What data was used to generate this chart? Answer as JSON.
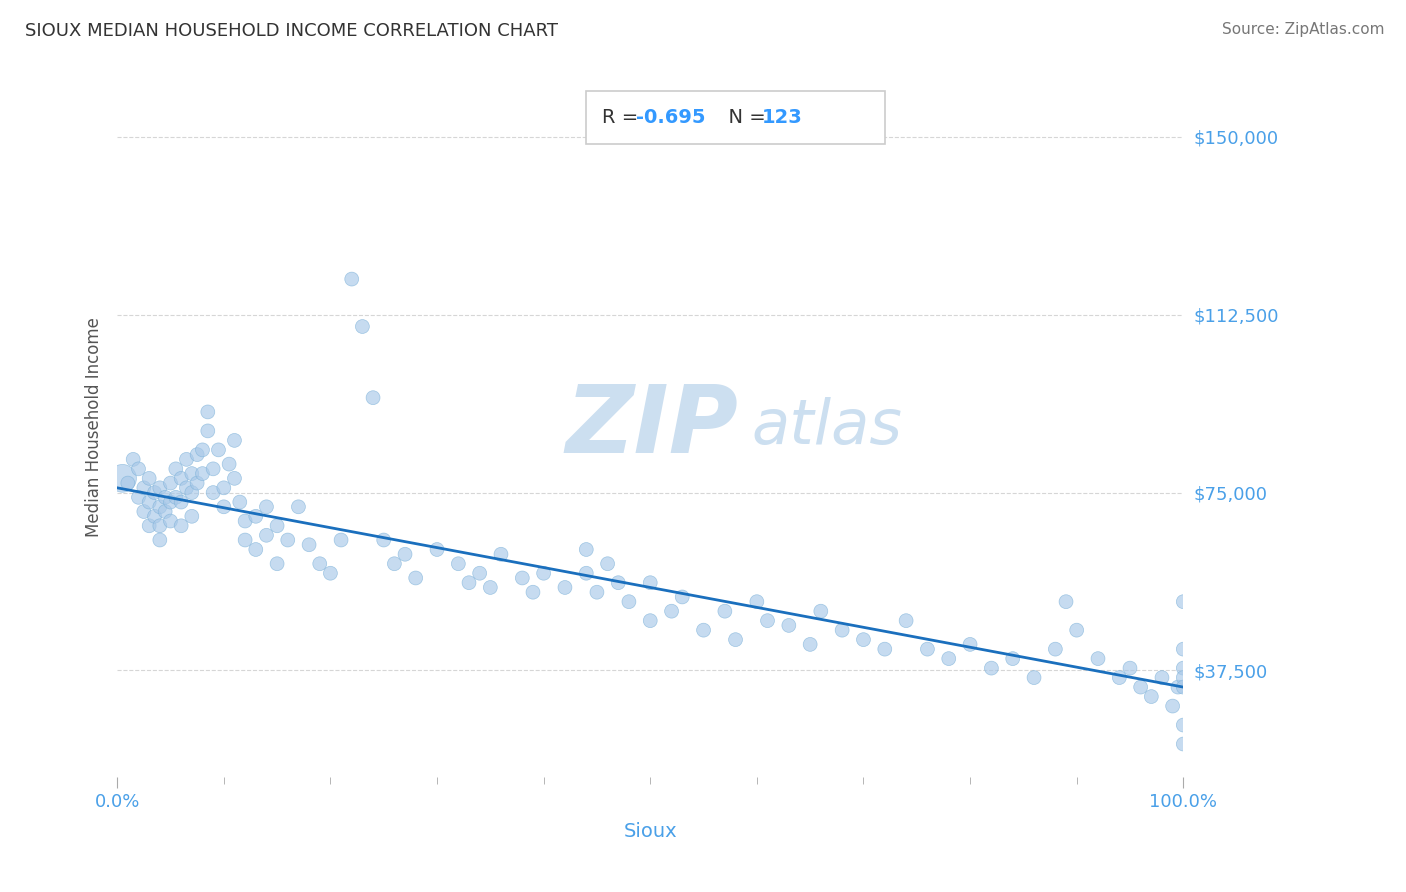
{
  "title": "SIOUX MEDIAN HOUSEHOLD INCOME CORRELATION CHART",
  "source": "Source: ZipAtlas.com",
  "xlabel": "Sioux",
  "ylabel": "Median Household Income",
  "R": -0.695,
  "N": 123,
  "xlim": [
    0.0,
    1.0
  ],
  "ylim": [
    15000,
    162500
  ],
  "yticks": [
    37500,
    75000,
    112500,
    150000
  ],
  "ytick_labels": [
    "$37,500",
    "$75,000",
    "$112,500",
    "$150,000"
  ],
  "xtick_labels": [
    "0.0%",
    "100.0%"
  ],
  "scatter_color": "#a8c8e8",
  "scatter_alpha": 0.65,
  "line_color": "#1a6fbd",
  "title_color": "#333333",
  "axis_label_color": "#4aa0e8",
  "grid_color": "#cccccc",
  "annotation_text_color": "#333333",
  "annotation_val_color": "#3399ff",
  "watermark_color": "#ccdff0",
  "scatter_x": [
    0.005,
    0.01,
    0.015,
    0.02,
    0.02,
    0.025,
    0.025,
    0.03,
    0.03,
    0.03,
    0.035,
    0.035,
    0.04,
    0.04,
    0.04,
    0.04,
    0.045,
    0.045,
    0.05,
    0.05,
    0.05,
    0.055,
    0.055,
    0.06,
    0.06,
    0.06,
    0.065,
    0.065,
    0.07,
    0.07,
    0.07,
    0.075,
    0.075,
    0.08,
    0.08,
    0.085,
    0.085,
    0.09,
    0.09,
    0.095,
    0.1,
    0.1,
    0.105,
    0.11,
    0.11,
    0.115,
    0.12,
    0.12,
    0.13,
    0.13,
    0.14,
    0.14,
    0.15,
    0.15,
    0.16,
    0.17,
    0.18,
    0.19,
    0.2,
    0.21,
    0.22,
    0.23,
    0.24,
    0.25,
    0.26,
    0.27,
    0.28,
    0.3,
    0.32,
    0.33,
    0.34,
    0.35,
    0.36,
    0.38,
    0.39,
    0.4,
    0.42,
    0.44,
    0.44,
    0.45,
    0.46,
    0.47,
    0.48,
    0.5,
    0.5,
    0.52,
    0.53,
    0.55,
    0.57,
    0.58,
    0.6,
    0.61,
    0.63,
    0.65,
    0.66,
    0.68,
    0.7,
    0.72,
    0.74,
    0.76,
    0.78,
    0.8,
    0.82,
    0.84,
    0.86,
    0.88,
    0.89,
    0.9,
    0.92,
    0.94,
    0.95,
    0.96,
    0.97,
    0.98,
    0.99,
    0.995,
    1.0,
    1.0,
    1.0,
    1.0,
    1.0,
    1.0,
    1.0
  ],
  "scatter_y": [
    78000,
    77000,
    82000,
    80000,
    74000,
    76000,
    71000,
    78000,
    73000,
    68000,
    75000,
    70000,
    76000,
    72000,
    68000,
    65000,
    74000,
    71000,
    77000,
    73000,
    69000,
    80000,
    74000,
    78000,
    73000,
    68000,
    82000,
    76000,
    79000,
    75000,
    70000,
    83000,
    77000,
    84000,
    79000,
    88000,
    92000,
    80000,
    75000,
    84000,
    76000,
    72000,
    81000,
    86000,
    78000,
    73000,
    69000,
    65000,
    70000,
    63000,
    66000,
    72000,
    60000,
    68000,
    65000,
    72000,
    64000,
    60000,
    58000,
    65000,
    120000,
    110000,
    95000,
    65000,
    60000,
    62000,
    57000,
    63000,
    60000,
    56000,
    58000,
    55000,
    62000,
    57000,
    54000,
    58000,
    55000,
    63000,
    58000,
    54000,
    60000,
    56000,
    52000,
    48000,
    56000,
    50000,
    53000,
    46000,
    50000,
    44000,
    52000,
    48000,
    47000,
    43000,
    50000,
    46000,
    44000,
    42000,
    48000,
    42000,
    40000,
    43000,
    38000,
    40000,
    36000,
    42000,
    52000,
    46000,
    40000,
    36000,
    38000,
    34000,
    32000,
    36000,
    30000,
    34000,
    52000,
    42000,
    38000,
    36000,
    34000,
    26000,
    22000
  ],
  "scatter_sizes": [
    400,
    100,
    100,
    100,
    100,
    100,
    100,
    100,
    100,
    100,
    100,
    100,
    100,
    100,
    100,
    100,
    100,
    100,
    100,
    100,
    100,
    100,
    100,
    100,
    100,
    100,
    100,
    100,
    100,
    100,
    100,
    100,
    100,
    100,
    100,
    100,
    100,
    100,
    100,
    100,
    100,
    100,
    100,
    100,
    100,
    100,
    100,
    100,
    100,
    100,
    100,
    100,
    100,
    100,
    100,
    100,
    100,
    100,
    100,
    100,
    100,
    100,
    100,
    100,
    100,
    100,
    100,
    100,
    100,
    100,
    100,
    100,
    100,
    100,
    100,
    100,
    100,
    100,
    100,
    100,
    100,
    100,
    100,
    100,
    100,
    100,
    100,
    100,
    100,
    100,
    100,
    100,
    100,
    100,
    100,
    100,
    100,
    100,
    100,
    100,
    100,
    100,
    100,
    100,
    100,
    100,
    100,
    100,
    100,
    100,
    100,
    100,
    100,
    100,
    100,
    100,
    100,
    100,
    100,
    100,
    100,
    100,
    100
  ],
  "line_x": [
    0.0,
    1.0
  ],
  "line_y": [
    76000,
    34000
  ]
}
